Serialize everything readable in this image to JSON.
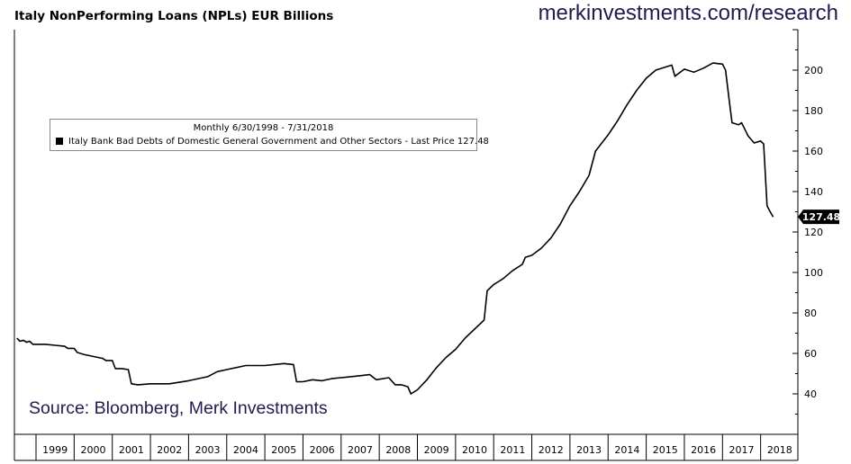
{
  "header": {
    "title": "Italy NonPerforming Loans (NPLs) EUR Billions",
    "brand": "merkinvestments.com/research"
  },
  "legend": {
    "range": "Monthly 6/30/1998 - 7/31/2018",
    "series": "Italy Bank Bad Debts of Domestic General Government and Other Sectors - Last Price",
    "last_price": "127.48"
  },
  "source": "Source: Bloomberg, Merk Investments",
  "colors": {
    "line": "#000000",
    "brand": "#1f1d4e",
    "price_tag": "#000000"
  },
  "chart_data": {
    "type": "line",
    "title": "Italy NonPerforming Loans (NPLs) EUR Billions",
    "x_tick_labels": [
      "1999",
      "2000",
      "2001",
      "2002",
      "2003",
      "2004",
      "2005",
      "2006",
      "2007",
      "2008",
      "2009",
      "2010",
      "2011",
      "2012",
      "2013",
      "2014",
      "2015",
      "2016",
      "2017",
      "2018"
    ],
    "y_tick_labels": [
      "40",
      "60",
      "80",
      "100",
      "120",
      "140",
      "160",
      "180",
      "200"
    ],
    "ylim": [
      22,
      221
    ],
    "xlim": [
      1998.5,
      2018.92
    ],
    "grid": false,
    "y_axis_side": "right",
    "last_value_label": "127.48",
    "series": [
      {
        "name": "Italy Bank Bad Debts of Domestic General Government and Other Sectors",
        "points": [
          [
            1998.5,
            67.5
          ],
          [
            1998.58,
            66.0
          ],
          [
            1998.67,
            66.5
          ],
          [
            1998.75,
            65.5
          ],
          [
            1998.83,
            66.0
          ],
          [
            1998.92,
            64.5
          ],
          [
            1999.0,
            64.5
          ],
          [
            1999.25,
            64.5
          ],
          [
            1999.5,
            64.0
          ],
          [
            1999.75,
            63.5
          ],
          [
            1999.83,
            62.5
          ],
          [
            2000.0,
            62.5
          ],
          [
            2000.08,
            60.5
          ],
          [
            2000.25,
            59.5
          ],
          [
            2000.5,
            58.5
          ],
          [
            2000.75,
            57.5
          ],
          [
            2000.83,
            56.5
          ],
          [
            2001.0,
            56.5
          ],
          [
            2001.08,
            52.5
          ],
          [
            2001.25,
            52.5
          ],
          [
            2001.42,
            52.0
          ],
          [
            2001.5,
            45.0
          ],
          [
            2001.67,
            44.5
          ],
          [
            2002.0,
            45.0
          ],
          [
            2002.5,
            45.0
          ],
          [
            2003.0,
            46.5
          ],
          [
            2003.5,
            48.5
          ],
          [
            2003.75,
            51.0
          ],
          [
            2004.0,
            52.0
          ],
          [
            2004.5,
            54.0
          ],
          [
            2005.0,
            54.0
          ],
          [
            2005.5,
            55.0
          ],
          [
            2005.75,
            54.5
          ],
          [
            2005.83,
            46.0
          ],
          [
            2006.0,
            46.0
          ],
          [
            2006.25,
            47.0
          ],
          [
            2006.5,
            46.5
          ],
          [
            2006.75,
            47.5
          ],
          [
            2007.0,
            48.0
          ],
          [
            2007.5,
            49.0
          ],
          [
            2007.75,
            49.5
          ],
          [
            2007.92,
            47.0
          ],
          [
            2008.25,
            48.0
          ],
          [
            2008.42,
            44.5
          ],
          [
            2008.58,
            44.5
          ],
          [
            2008.75,
            43.5
          ],
          [
            2008.83,
            40.0
          ],
          [
            2009.0,
            42.0
          ],
          [
            2009.25,
            47.0
          ],
          [
            2009.5,
            53.0
          ],
          [
            2009.75,
            58.0
          ],
          [
            2010.0,
            62.0
          ],
          [
            2010.25,
            67.5
          ],
          [
            2010.5,
            72.0
          ],
          [
            2010.75,
            76.5
          ],
          [
            2010.83,
            91.0
          ],
          [
            2011.0,
            94.0
          ],
          [
            2011.25,
            97.0
          ],
          [
            2011.5,
            101.0
          ],
          [
            2011.75,
            104.0
          ],
          [
            2011.83,
            107.5
          ],
          [
            2012.0,
            108.5
          ],
          [
            2012.25,
            112.0
          ],
          [
            2012.5,
            117.0
          ],
          [
            2012.75,
            124.0
          ],
          [
            2013.0,
            133.0
          ],
          [
            2013.25,
            140.0
          ],
          [
            2013.5,
            148.0
          ],
          [
            2013.67,
            160.0
          ],
          [
            2014.0,
            168.0
          ],
          [
            2014.25,
            175.0
          ],
          [
            2014.5,
            183.0
          ],
          [
            2014.75,
            190.0
          ],
          [
            2015.0,
            196.0
          ],
          [
            2015.25,
            200.0
          ],
          [
            2015.5,
            201.5
          ],
          [
            2015.67,
            202.5
          ],
          [
            2015.75,
            197.0
          ],
          [
            2016.0,
            200.5
          ],
          [
            2016.25,
            199.0
          ],
          [
            2016.5,
            201.0
          ],
          [
            2016.75,
            203.5
          ],
          [
            2017.0,
            203.0
          ],
          [
            2017.08,
            200.0
          ],
          [
            2017.17,
            186.0
          ],
          [
            2017.25,
            174.0
          ],
          [
            2017.42,
            173.0
          ],
          [
            2017.5,
            174.0
          ],
          [
            2017.58,
            171.0
          ],
          [
            2017.67,
            167.5
          ],
          [
            2017.83,
            164.0
          ],
          [
            2018.0,
            165.0
          ],
          [
            2018.08,
            163.5
          ],
          [
            2018.17,
            133.0
          ],
          [
            2018.25,
            130.0
          ],
          [
            2018.33,
            127.48
          ]
        ]
      }
    ]
  }
}
